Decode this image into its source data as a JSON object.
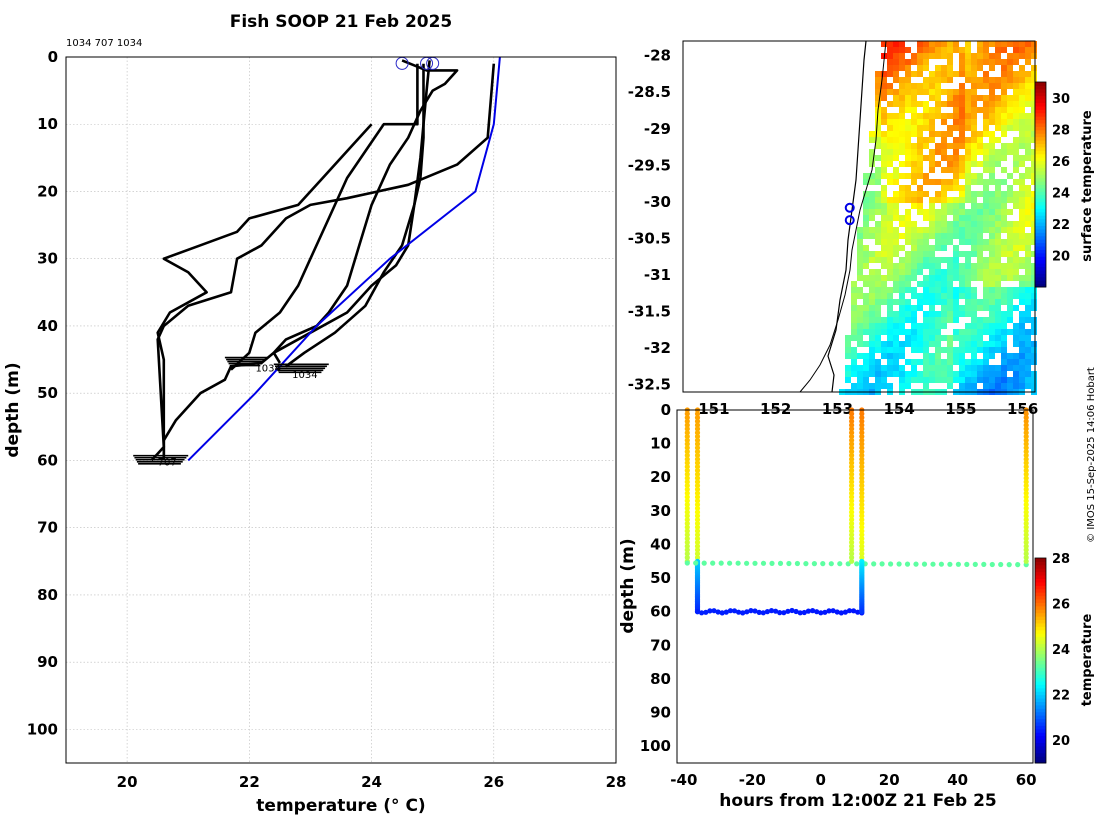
{
  "chart_data": [
    {
      "type": "line",
      "title": "Fish SOOP 21 Feb 2025",
      "subtitle": "1034 707 1034",
      "xlabel": "temperature (° C)",
      "ylabel": "depth (m)",
      "xlim": [
        19,
        28
      ],
      "ylim": [
        105,
        0
      ],
      "xticks": [
        20,
        22,
        24,
        26,
        28
      ],
      "yticks": [
        0,
        10,
        20,
        30,
        40,
        50,
        60,
        70,
        80,
        90,
        100
      ],
      "grid": true,
      "point_labels": [
        {
          "text": "1034",
          "x": 22.1,
          "depth": 46
        },
        {
          "text": "1034",
          "x": 22.7,
          "depth": 47
        },
        {
          "text": "707",
          "x": 20.5,
          "depth": 60
        }
      ],
      "surface_markers": [
        {
          "x": 24.5,
          "depth": 0.5
        },
        {
          "x": 24.9,
          "depth": 0.5
        },
        {
          "x": 25.0,
          "depth": 0.5
        }
      ],
      "series": [
        {
          "name": "profile-1",
          "color": "#000000",
          "points": [
            [
              24.5,
              0.5
            ],
            [
              24.9,
              2
            ],
            [
              25.4,
              2
            ],
            [
              25.2,
              4
            ],
            [
              25.0,
              5
            ],
            [
              24.8,
              8
            ],
            [
              24.6,
              12
            ],
            [
              24.3,
              16
            ],
            [
              24.0,
              22
            ],
            [
              23.8,
              28
            ],
            [
              23.6,
              34
            ],
            [
              23.3,
              38
            ],
            [
              23.1,
              40
            ],
            [
              22.6,
              42
            ],
            [
              22.4,
              44
            ],
            [
              22.5,
              45.5
            ]
          ]
        },
        {
          "name": "profile-2",
          "color": "#000000",
          "points": [
            [
              24.75,
              1
            ],
            [
              24.75,
              10
            ],
            [
              24.2,
              10
            ],
            [
              23.9,
              14
            ],
            [
              23.6,
              18
            ],
            [
              23.3,
              24
            ],
            [
              23.0,
              30
            ],
            [
              22.8,
              34
            ],
            [
              22.5,
              38
            ],
            [
              22.1,
              41
            ],
            [
              22.0,
              44
            ],
            [
              21.7,
              46.5
            ]
          ]
        },
        {
          "name": "profile-3",
          "color": "#000000",
          "points": [
            [
              24.85,
              1
            ],
            [
              24.85,
              12
            ],
            [
              24.8,
              18
            ],
            [
              24.7,
              22
            ],
            [
              24.5,
              28
            ],
            [
              24.2,
              32
            ],
            [
              23.9,
              37
            ],
            [
              23.4,
              41
            ],
            [
              22.9,
              44
            ],
            [
              22.6,
              46
            ]
          ]
        },
        {
          "name": "profile-4",
          "color": "#000000",
          "points": [
            [
              24.0,
              10
            ],
            [
              23.6,
              14
            ],
            [
              23.2,
              18
            ],
            [
              22.8,
              22
            ],
            [
              22.0,
              24
            ],
            [
              21.8,
              26
            ],
            [
              21.2,
              28
            ],
            [
              20.6,
              30
            ],
            [
              21.0,
              32
            ],
            [
              21.3,
              35
            ],
            [
              20.7,
              38
            ],
            [
              20.5,
              41
            ],
            [
              20.6,
              45
            ],
            [
              20.6,
              60
            ]
          ]
        },
        {
          "name": "profile-5",
          "color": "#000000",
          "points": [
            [
              26.0,
              1
            ],
            [
              25.9,
              12
            ],
            [
              25.4,
              16
            ],
            [
              24.6,
              19
            ],
            [
              23.6,
              21
            ],
            [
              23.0,
              22
            ],
            [
              22.6,
              24
            ],
            [
              22.2,
              28
            ],
            [
              21.8,
              30
            ],
            [
              21.7,
              35
            ],
            [
              21.0,
              37
            ],
            [
              20.6,
              40
            ],
            [
              20.5,
              42
            ],
            [
              20.6,
              58
            ],
            [
              20.4,
              60
            ]
          ]
        },
        {
          "name": "profile-6",
          "color": "#000000",
          "points": [
            [
              24.95,
              0.5
            ],
            [
              24.9,
              5
            ],
            [
              24.8,
              15
            ],
            [
              24.7,
              22
            ],
            [
              24.6,
              28
            ],
            [
              24.4,
              31
            ],
            [
              24.0,
              34
            ],
            [
              23.6,
              38
            ],
            [
              23.0,
              41
            ],
            [
              22.4,
              44
            ],
            [
              22.2,
              45.5
            ],
            [
              21.7,
              46
            ],
            [
              21.6,
              48
            ],
            [
              21.2,
              50
            ],
            [
              20.8,
              54
            ],
            [
              20.6,
              57
            ],
            [
              20.6,
              60
            ]
          ]
        },
        {
          "name": "model",
          "color": "#0000e6",
          "points": [
            [
              26.1,
              0
            ],
            [
              26.0,
              10
            ],
            [
              25.7,
              20
            ],
            [
              24.3,
              30
            ],
            [
              23.1,
              40
            ],
            [
              22.6,
              45
            ],
            [
              22.1,
              50
            ],
            [
              21.0,
              60
            ]
          ]
        }
      ]
    },
    {
      "type": "heatmap",
      "xticks": [
        151,
        152,
        153,
        154,
        155,
        156
      ],
      "xtick_labels": [
        "151",
        "152",
        "153",
        "154",
        "155",
        "156"
      ],
      "yticks": [
        -28,
        -28.5,
        -29,
        -29.5,
        -30,
        -30.5,
        -31,
        -31.5,
        -32,
        -32.5
      ],
      "ytick_labels": [
        "-28",
        "-28.5",
        "-29",
        "-29.5",
        "-30",
        "-30.5",
        "-31",
        "-31.5",
        "-32",
        "-32.5"
      ],
      "xlim": [
        150.5,
        156.2
      ],
      "ylim": [
        -32.6,
        -27.8
      ],
      "colorbar_label": "surface temperature",
      "colorbar_range": [
        18,
        31
      ],
      "colorbar_ticks": [
        20,
        22,
        24,
        26,
        28,
        30
      ],
      "stations": [
        [
          153.2,
          -30.08
        ],
        [
          153.2,
          -30.25
        ]
      ]
    },
    {
      "type": "scatter",
      "xlabel": "hours from 12:00Z 21 Feb 25",
      "ylabel": "depth (m)",
      "xlim": [
        -42,
        62
      ],
      "ylim": [
        105,
        0
      ],
      "xticks": [
        -40,
        -20,
        0,
        20,
        40,
        60
      ],
      "yticks": [
        0,
        10,
        20,
        30,
        40,
        50,
        60,
        70,
        80,
        90,
        100
      ],
      "colorbar_label": "temperature",
      "colorbar_range": [
        19,
        28
      ],
      "colorbar_ticks": [
        20,
        22,
        24,
        26,
        28
      ],
      "tracks": [
        {
          "hours": [
            -39,
            -39
          ],
          "depth": [
            0,
            45
          ],
          "temp": [
            25.5,
            24.0
          ]
        },
        {
          "hours": [
            -36,
            -36
          ],
          "depth": [
            0,
            45
          ],
          "temp": [
            25.5,
            24.2
          ]
        },
        {
          "hours": [
            -36,
            -36
          ],
          "depth": [
            45,
            60
          ],
          "temp": [
            22.0,
            20.5
          ]
        },
        {
          "hours": [
            -36,
            12
          ],
          "depth": [
            60,
            60
          ],
          "temp": [
            20.4,
            20.3
          ]
        },
        {
          "hours": [
            -39,
            60
          ],
          "depth": [
            45.5,
            46
          ],
          "temp": [
            23.2,
            23.2
          ]
        },
        {
          "hours": [
            9,
            9
          ],
          "depth": [
            0,
            45
          ],
          "temp": [
            25.8,
            24.0
          ]
        },
        {
          "hours": [
            12,
            12
          ],
          "depth": [
            0,
            45
          ],
          "temp": [
            25.8,
            24.3
          ]
        },
        {
          "hours": [
            12,
            12
          ],
          "depth": [
            45,
            60
          ],
          "temp": [
            22.3,
            20.6
          ]
        },
        {
          "hours": [
            60,
            60
          ],
          "depth": [
            0,
            45
          ],
          "temp": [
            25.6,
            24.0
          ]
        }
      ]
    }
  ],
  "credit": "© IMOS 15-Sep-2025 14:06 Hobart"
}
